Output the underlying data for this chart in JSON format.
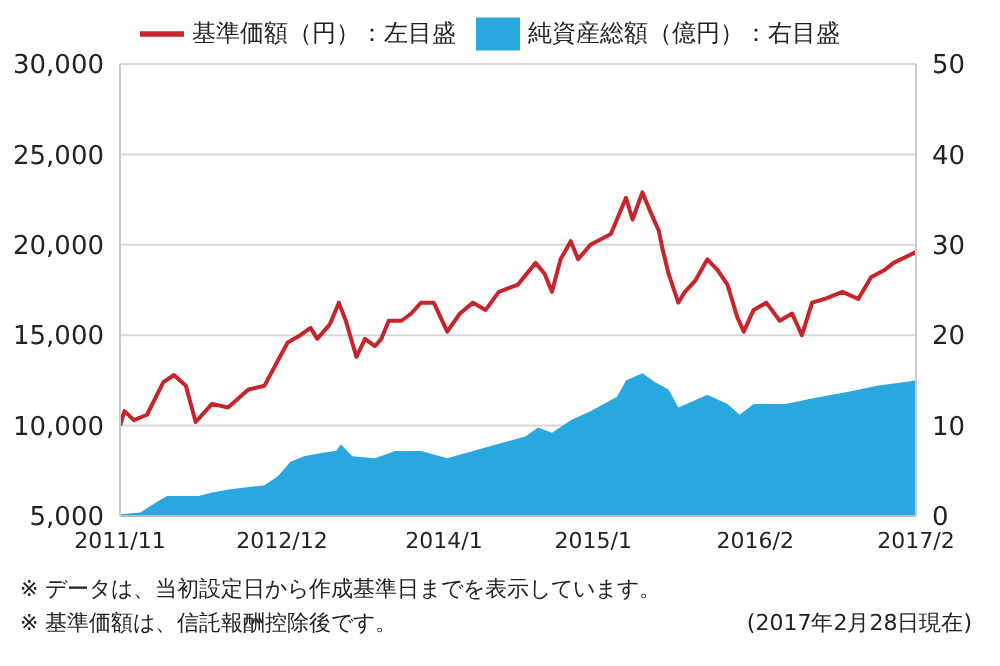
{
  "chart_data": {
    "type": "line",
    "legend": "top",
    "grid": "y",
    "xlim": [
      "2011-11-01",
      "2017-02-28"
    ],
    "xticks": [
      {
        "value": "2011-11-01",
        "label": "2011/11"
      },
      {
        "value": "2012-12-01",
        "label": "2012/12"
      },
      {
        "value": "2014-01-01",
        "label": "2014/1"
      },
      {
        "value": "2015-01-01",
        "label": "2015/1"
      },
      {
        "value": "2016-02-01",
        "label": "2016/2"
      },
      {
        "value": "2017-02-28",
        "label": "2017/2"
      }
    ],
    "ylim": [
      5000,
      30000
    ],
    "yticks": [
      {
        "value": 5000,
        "label": "5,000"
      },
      {
        "value": 10000,
        "label": "10,000"
      },
      {
        "value": 15000,
        "label": "15,000"
      },
      {
        "value": 20000,
        "label": "20,000"
      },
      {
        "value": 25000,
        "label": "25,000"
      },
      {
        "value": 30000,
        "label": "30,000"
      }
    ],
    "y2lim": [
      0,
      50
    ],
    "y2ticks": [
      0,
      10,
      20,
      30,
      40,
      50
    ],
    "series": [
      {
        "name": "基準価額（円）：左目盛",
        "color": "#c8242b",
        "x": [
          "2011-11-01",
          "2011-11-12",
          "2011-12-05",
          "2012-01-06",
          "2012-02-15",
          "2012-03-12",
          "2012-04-10",
          "2012-05-04",
          "2012-06-13",
          "2012-07-22",
          "2012-09-10",
          "2012-10-19",
          "2012-11-21",
          "2012-12-15",
          "2013-01-15",
          "2013-02-09",
          "2013-02-25",
          "2013-03-28",
          "2013-04-19",
          "2013-05-06",
          "2013-06-01",
          "2013-06-22",
          "2013-07-16",
          "2013-08-01",
          "2013-08-19",
          "2013-09-19",
          "2013-10-13",
          "2013-11-06",
          "2013-12-07",
          "2014-01-09",
          "2014-02-09",
          "2014-03-13",
          "2014-04-13",
          "2014-05-15",
          "2014-07-01",
          "2014-08-13",
          "2014-09-04",
          "2014-09-22",
          "2014-10-13",
          "2014-11-07",
          "2014-11-25",
          "2014-12-25",
          "2015-02-13",
          "2015-03-22",
          "2015-04-07",
          "2015-05-01",
          "2015-05-25",
          "2015-06-10",
          "2015-06-19",
          "2015-07-04",
          "2015-07-28",
          "2015-08-13",
          "2015-09-07",
          "2015-10-07",
          "2015-11-01",
          "2015-11-25",
          "2015-12-19",
          "2016-01-04",
          "2016-01-28",
          "2016-02-28",
          "2016-04-01",
          "2016-05-01",
          "2016-05-25",
          "2016-06-19",
          "2016-07-19",
          "2016-09-01",
          "2016-10-10",
          "2016-11-10",
          "2016-12-13",
          "2017-01-04",
          "2017-02-28"
        ],
        "values": [
          10000,
          10800,
          10300,
          10600,
          12400,
          12800,
          12200,
          10200,
          11200,
          11000,
          12000,
          12200,
          13600,
          14600,
          15000,
          15400,
          14800,
          15600,
          16800,
          15800,
          13800,
          14800,
          14400,
          14800,
          15800,
          15800,
          16200,
          16800,
          16800,
          15200,
          16200,
          16800,
          16400,
          17400,
          17800,
          19000,
          18400,
          17400,
          19200,
          20200,
          19200,
          20000,
          20600,
          22600,
          21400,
          22900,
          21600,
          20800,
          19800,
          18400,
          16800,
          17400,
          18000,
          19200,
          18600,
          17800,
          16000,
          15200,
          16400,
          16800,
          15800,
          16200,
          15000,
          16800,
          17000,
          17400,
          17000,
          18200,
          18600,
          19000,
          19600
        ]
      },
      {
        "name": "純資産総額（億円）：右目盛",
        "type": "area",
        "axis": "y2",
        "color": "#29a8e0",
        "x": [
          "2011-11-01",
          "2011-12-21",
          "2012-02-01",
          "2012-02-24",
          "2012-03-25",
          "2012-05-12",
          "2012-06-13",
          "2012-08-01",
          "2012-10-19",
          "2012-11-21",
          "2012-12-22",
          "2013-01-24",
          "2013-03-10",
          "2013-04-12",
          "2013-04-24",
          "2013-05-22",
          "2013-07-16",
          "2013-09-04",
          "2013-11-06",
          "2014-01-09",
          "2014-03-13",
          "2014-05-15",
          "2014-07-19",
          "2014-08-19",
          "2014-09-22",
          "2014-11-07",
          "2014-12-25",
          "2015-02-28",
          "2015-03-22",
          "2015-05-01",
          "2015-06-01",
          "2015-07-04",
          "2015-07-28",
          "2015-09-07",
          "2015-10-07",
          "2015-11-25",
          "2015-12-25",
          "2016-01-28",
          "2016-04-15",
          "2016-06-19",
          "2016-09-22",
          "2016-11-25",
          "2017-02-28"
        ],
        "values": [
          0.2,
          0.4,
          1.6,
          2.2,
          2.2,
          2.2,
          2.6,
          3.0,
          3.4,
          4.4,
          6.0,
          6.6,
          7.0,
          7.2,
          7.9,
          6.6,
          6.4,
          7.2,
          7.2,
          6.4,
          7.2,
          8.0,
          8.8,
          9.8,
          9.2,
          10.6,
          11.6,
          13.2,
          15.0,
          15.8,
          14.8,
          14.0,
          12.0,
          12.8,
          13.4,
          12.4,
          11.2,
          12.4,
          12.4,
          13.0,
          13.8,
          14.4,
          15.0
        ]
      }
    ],
    "annotations": [
      "※ データは、当初設定日から作成基準日までを表示しています。",
      "※ 基準価額は、信託報酬控除後です。",
      "(2017年2月28日現在)"
    ]
  }
}
